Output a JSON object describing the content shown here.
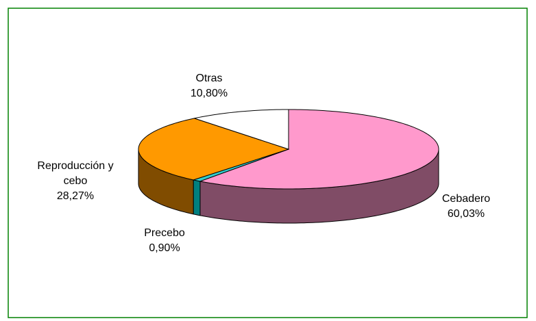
{
  "chart_data": {
    "type": "pie3d",
    "categories": [
      "Cebadero",
      "Precebo",
      "Reproducción y cebo",
      "Otras"
    ],
    "values": [
      60.03,
      0.9,
      28.27,
      10.8
    ],
    "value_labels": [
      "60,03%",
      "0,90%",
      "28,27%",
      "10,80%"
    ],
    "colors": [
      "#ff99cc",
      "#33cccc",
      "#ff9900",
      "#ffffff"
    ],
    "side_colors": [
      "#804c66",
      "#008080",
      "#804c00",
      "#b0b0b0"
    ]
  }
}
